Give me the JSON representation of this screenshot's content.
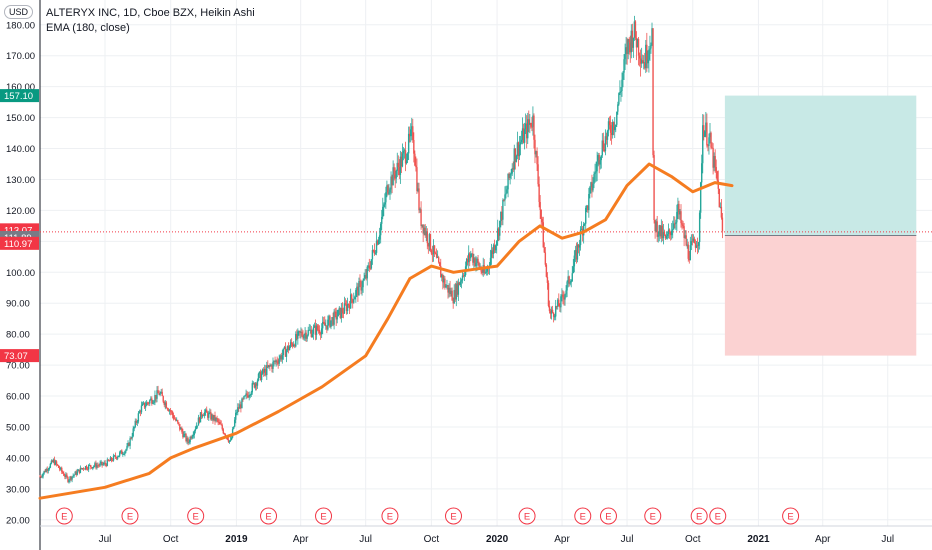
{
  "header": {
    "currency": "USD",
    "title": "ALTERYX INC, 1D, Cboe BZX, Heikin Ashi",
    "indicator": "EMA (180, close)"
  },
  "colors": {
    "up": "#26a69a",
    "down": "#ef5350",
    "ema": "#f57c20",
    "grid": "#eef0f3",
    "target_zone": "#c8e9e6",
    "stop_zone": "#fbd2d2",
    "target_tag": "#089981",
    "stop_tag": "#f23645",
    "current_tag": "#f23645",
    "entry_tag": "#787b86",
    "earnings": "#f23645"
  },
  "chart_data": {
    "type": "candlestick",
    "ylim": [
      18,
      188
    ],
    "y_ticks": [
      "20.00",
      "30.00",
      "40.00",
      "50.00",
      "60.00",
      "70.00",
      "80.00",
      "90.00",
      "100.00",
      "110.00",
      "120.00",
      "130.00",
      "140.00",
      "150.00",
      "160.00",
      "170.00",
      "180.00"
    ],
    "x_labels": [
      {
        "label": "Jul",
        "date": "2018-07"
      },
      {
        "label": "Oct",
        "date": "2018-10"
      },
      {
        "label": "2019",
        "date": "2019-01"
      },
      {
        "label": "Apr",
        "date": "2019-04"
      },
      {
        "label": "Jul",
        "date": "2019-07"
      },
      {
        "label": "Oct",
        "date": "2019-10"
      },
      {
        "label": "2020",
        "date": "2020-01"
      },
      {
        "label": "Apr",
        "date": "2020-04"
      },
      {
        "label": "Jul",
        "date": "2020-07"
      },
      {
        "label": "Oct",
        "date": "2020-10"
      },
      {
        "label": "2021",
        "date": "2021-01"
      },
      {
        "label": "Apr",
        "date": "2021-04"
      },
      {
        "label": "Jul",
        "date": "2021-07"
      }
    ],
    "x_range": [
      "2018-04",
      "2021-09"
    ],
    "price_anchors": [
      {
        "date": "2018-04",
        "value": 34
      },
      {
        "date": "2018-04-20",
        "value": 39
      },
      {
        "date": "2018-05-10",
        "value": 33
      },
      {
        "date": "2018-06",
        "value": 37
      },
      {
        "date": "2018-07",
        "value": 38
      },
      {
        "date": "2018-08",
        "value": 43
      },
      {
        "date": "2018-08-20",
        "value": 56
      },
      {
        "date": "2018-09-15",
        "value": 61
      },
      {
        "date": "2018-10",
        "value": 55
      },
      {
        "date": "2018-10-25",
        "value": 45
      },
      {
        "date": "2018-11-15",
        "value": 55
      },
      {
        "date": "2018-12-05",
        "value": 52
      },
      {
        "date": "2018-12-24",
        "value": 45
      },
      {
        "date": "2019-01",
        "value": 55
      },
      {
        "date": "2019-02",
        "value": 66
      },
      {
        "date": "2019-03",
        "value": 72
      },
      {
        "date": "2019-04",
        "value": 80
      },
      {
        "date": "2019-05",
        "value": 82
      },
      {
        "date": "2019-06",
        "value": 88
      },
      {
        "date": "2019-07",
        "value": 98
      },
      {
        "date": "2019-07-20",
        "value": 113
      },
      {
        "date": "2019-08",
        "value": 128
      },
      {
        "date": "2019-08-25",
        "value": 138
      },
      {
        "date": "2019-09-05",
        "value": 145
      },
      {
        "date": "2019-09-15",
        "value": 118
      },
      {
        "date": "2019-10",
        "value": 108
      },
      {
        "date": "2019-10-20",
        "value": 96
      },
      {
        "date": "2019-11",
        "value": 92
      },
      {
        "date": "2019-11-25",
        "value": 106
      },
      {
        "date": "2019-12-15",
        "value": 99
      },
      {
        "date": "2020-01",
        "value": 112
      },
      {
        "date": "2020-01-25",
        "value": 138
      },
      {
        "date": "2020-02-20",
        "value": 150
      },
      {
        "date": "2020-03",
        "value": 122
      },
      {
        "date": "2020-03-15",
        "value": 86
      },
      {
        "date": "2020-03-30",
        "value": 90
      },
      {
        "date": "2020-04-15",
        "value": 100
      },
      {
        "date": "2020-05",
        "value": 116
      },
      {
        "date": "2020-05-25",
        "value": 140
      },
      {
        "date": "2020-06-15",
        "value": 150
      },
      {
        "date": "2020-07",
        "value": 172
      },
      {
        "date": "2020-07-10",
        "value": 178
      },
      {
        "date": "2020-07-25",
        "value": 168
      },
      {
        "date": "2020-08-05",
        "value": 178
      },
      {
        "date": "2020-08-07",
        "value": 116
      },
      {
        "date": "2020-08-25",
        "value": 110
      },
      {
        "date": "2020-09-10",
        "value": 120
      },
      {
        "date": "2020-09-25",
        "value": 106
      },
      {
        "date": "2020-10-10",
        "value": 112
      },
      {
        "date": "2020-10-15",
        "value": 148
      },
      {
        "date": "2020-10-25",
        "value": 142
      },
      {
        "date": "2020-11-05",
        "value": 128
      },
      {
        "date": "2020-11-12",
        "value": 112
      }
    ],
    "ema_anchors": [
      {
        "date": "2018-04",
        "value": 27
      },
      {
        "date": "2018-07",
        "value": 30.5
      },
      {
        "date": "2018-09",
        "value": 35
      },
      {
        "date": "2018-10",
        "value": 40
      },
      {
        "date": "2018-11",
        "value": 43
      },
      {
        "date": "2019-01",
        "value": 48
      },
      {
        "date": "2019-03",
        "value": 55
      },
      {
        "date": "2019-05",
        "value": 63
      },
      {
        "date": "2019-07",
        "value": 73
      },
      {
        "date": "2019-08",
        "value": 85
      },
      {
        "date": "2019-09",
        "value": 98
      },
      {
        "date": "2019-10",
        "value": 102
      },
      {
        "date": "2019-11",
        "value": 100
      },
      {
        "date": "2019-12",
        "value": 101
      },
      {
        "date": "2020-01",
        "value": 102
      },
      {
        "date": "2020-02",
        "value": 110
      },
      {
        "date": "2020-03",
        "value": 115
      },
      {
        "date": "2020-04",
        "value": 111
      },
      {
        "date": "2020-05",
        "value": 113
      },
      {
        "date": "2020-06",
        "value": 117
      },
      {
        "date": "2020-07",
        "value": 128
      },
      {
        "date": "2020-08",
        "value": 135
      },
      {
        "date": "2020-09",
        "value": 131
      },
      {
        "date": "2020-10",
        "value": 126
      },
      {
        "date": "2020-11",
        "value": 129
      },
      {
        "date": "2020-11-25",
        "value": 128
      }
    ],
    "earnings_marker_label": "E",
    "earnings_dates": [
      "2018-05-05",
      "2018-08-05",
      "2018-11-05",
      "2019-02-15",
      "2019-05-03",
      "2019-08-04",
      "2019-11-01",
      "2020-02-12",
      "2020-04-30",
      "2020-06-05",
      "2020-08-06",
      "2020-10-10",
      "2020-11-05",
      "2021-02-15"
    ],
    "position": {
      "start": "2020-11-15",
      "end": "2021-08-10",
      "entry": 111.89,
      "target": 157.1,
      "stop": 73.07
    },
    "price_tags": [
      {
        "label": "157.10",
        "value": 157.1,
        "kind": "target_tag"
      },
      {
        "label": "113.07",
        "value": 113.07,
        "kind": "current_tag"
      },
      {
        "label": "111.89",
        "value": 111.89,
        "kind": "entry_tag"
      },
      {
        "label": "110.97",
        "value": 110.97,
        "kind": "current_tag"
      },
      {
        "label": "73.07",
        "value": 73.07,
        "kind": "stop_tag"
      }
    ],
    "current_price": 113.07
  }
}
